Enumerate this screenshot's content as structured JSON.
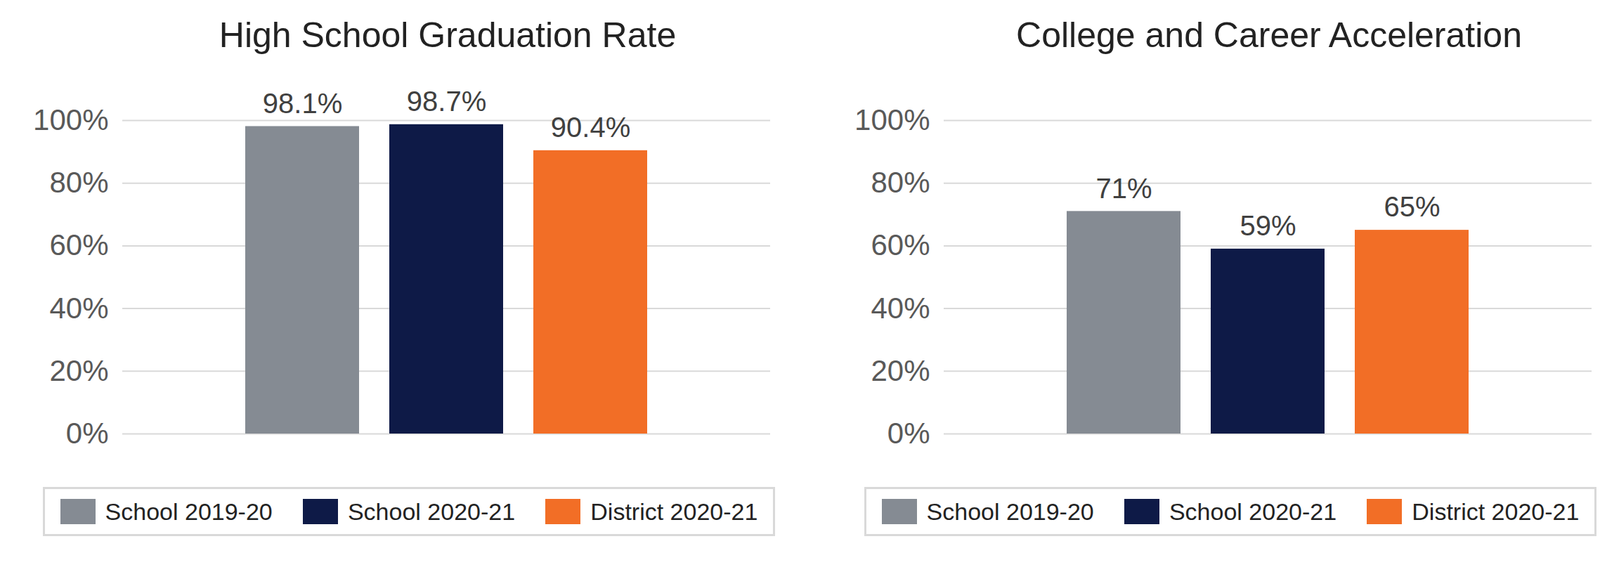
{
  "chart_data": [
    {
      "type": "bar",
      "title": "High School Graduation Rate",
      "categories": [
        null
      ],
      "series": [
        {
          "name": "School 2019-20",
          "color": "#858b93",
          "values": [
            98.1
          ],
          "value_labels": [
            "98.1%"
          ]
        },
        {
          "name": "School 2020-21",
          "color": "#0e1a47",
          "values": [
            98.7
          ],
          "value_labels": [
            "98.7%"
          ]
        },
        {
          "name": "District 2020-21",
          "color": "#f26e26",
          "values": [
            90.4
          ],
          "value_labels": [
            "90.4%"
          ]
        }
      ],
      "ylim": [
        0,
        100
      ],
      "yticks": [
        {
          "value": 0,
          "label": "0%"
        },
        {
          "value": 20,
          "label": "20%"
        },
        {
          "value": 40,
          "label": "40%"
        },
        {
          "value": 60,
          "label": "60%"
        },
        {
          "value": 80,
          "label": "80%"
        },
        {
          "value": 100,
          "label": "100%"
        }
      ],
      "grid": true,
      "legend": "bottom",
      "data_labels": true
    },
    {
      "type": "bar",
      "title": "College and Career Acceleration",
      "categories": [
        null
      ],
      "series": [
        {
          "name": "School 2019-20",
          "color": "#858b93",
          "values": [
            71
          ],
          "value_labels": [
            "71%"
          ]
        },
        {
          "name": "School 2020-21",
          "color": "#0e1a47",
          "values": [
            59
          ],
          "value_labels": [
            "59%"
          ]
        },
        {
          "name": "District 2020-21",
          "color": "#f26e26",
          "values": [
            65
          ],
          "value_labels": [
            "65%"
          ]
        }
      ],
      "ylim": [
        0,
        100
      ],
      "yticks": [
        {
          "value": 0,
          "label": "0%"
        },
        {
          "value": 20,
          "label": "20%"
        },
        {
          "value": 40,
          "label": "40%"
        },
        {
          "value": 60,
          "label": "60%"
        },
        {
          "value": 80,
          "label": "80%"
        },
        {
          "value": 100,
          "label": "100%"
        }
      ],
      "grid": true,
      "legend": "bottom",
      "data_labels": true
    }
  ]
}
